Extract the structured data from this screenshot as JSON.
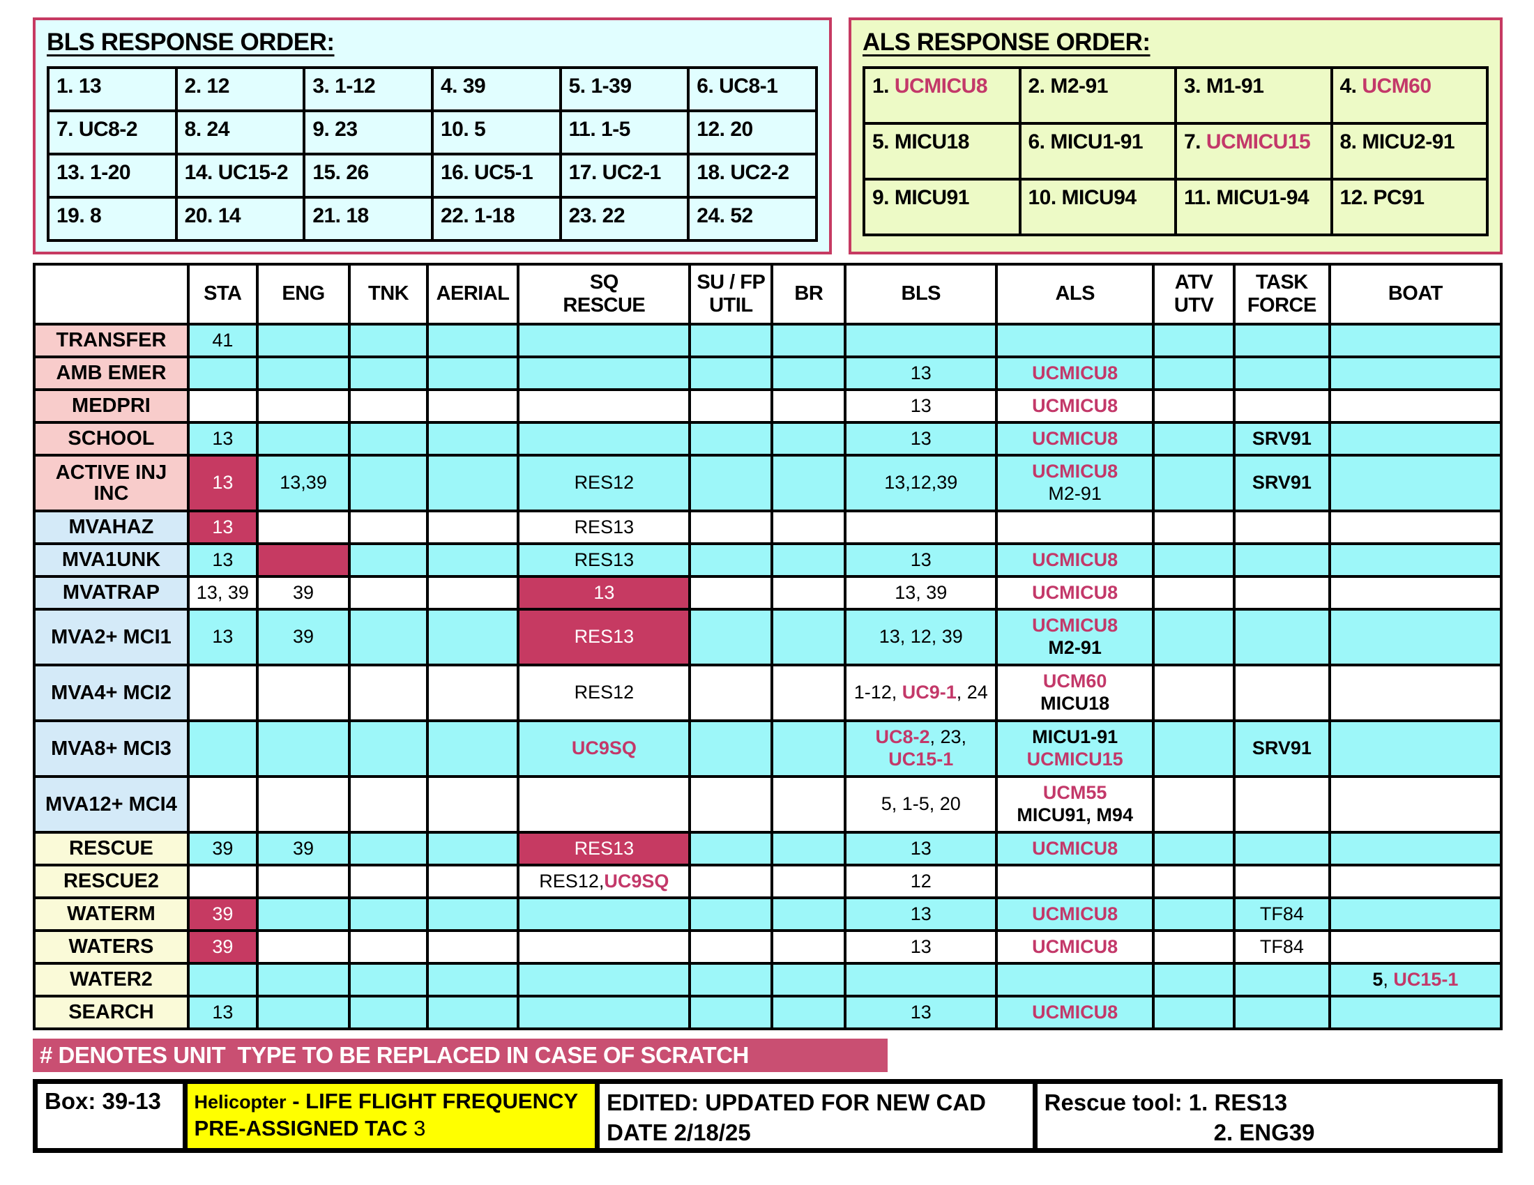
{
  "colors": {
    "crimson_cell": "#C63A62",
    "banner_bg": "#C94F72",
    "red_text": "#C33869",
    "cyan_cell": "#9DF7F9",
    "pink_label": "#F8CCCB",
    "blue_label": "#D4EAF8",
    "yellow_label": "#FAFAD8",
    "bls_panel_bg": "#E1FEFF",
    "als_panel_bg": "#EDFAC6",
    "helicopter_note_bg": "#FFFF00"
  },
  "bls_box": {
    "title": "BLS RESPONSE ORDER:",
    "rows": [
      [
        "1. 13",
        "2. 12",
        "3. 1-12",
        "4. 39",
        "5. 1-39",
        "6. UC8-1"
      ],
      [
        "7. UC8-2",
        "8. 24",
        "9. 23",
        "10. 5",
        "11. 1-5",
        "12. 20"
      ],
      [
        "13. 1-20",
        "14. UC15-2",
        "15. 26",
        "16. UC5-1",
        "17. UC2-1",
        "18. UC2-2"
      ],
      [
        "19. 8",
        "20. 14",
        "21. 18",
        "22. 1-18",
        "23. 22",
        "24. 52"
      ]
    ]
  },
  "als_box": {
    "title": "ALS RESPONSE ORDER:",
    "rows": [
      [
        {
          "pre": "1. ",
          "unit": "UCMICU8",
          "red": true
        },
        {
          "pre": "2. ",
          "unit": "M2-91",
          "red": false
        },
        {
          "pre": "3. ",
          "unit": "M1-91",
          "red": false
        },
        {
          "pre": "4. ",
          "unit": "UCM60",
          "red": true
        }
      ],
      [
        {
          "pre": "5. ",
          "unit": "MICU18",
          "red": false
        },
        {
          "pre": "6. ",
          "unit": "MICU1-91",
          "red": false
        },
        {
          "pre": "7. ",
          "unit": "UCMICU15",
          "red": true
        },
        {
          "pre": "8. ",
          "unit": "MICU2-91",
          "red": false
        }
      ],
      [
        {
          "pre": "9. ",
          "unit": "MICU91",
          "red": false
        },
        {
          "pre": "10. ",
          "unit": "MICU94",
          "red": false
        },
        {
          "pre": "11. ",
          "unit": "MICU1-94",
          "red": false
        },
        {
          "pre": "12. ",
          "unit": "PC91",
          "red": false
        }
      ]
    ]
  },
  "main_table": {
    "columns": [
      {
        "key": "label",
        "label": [
          ""
        ],
        "w": 10.5
      },
      {
        "key": "sta",
        "label": [
          "STA"
        ],
        "w": 4.7
      },
      {
        "key": "eng",
        "label": [
          "ENG"
        ],
        "w": 6.3
      },
      {
        "key": "tnk",
        "label": [
          "TNK"
        ],
        "w": 5.3
      },
      {
        "key": "aerial",
        "label": [
          "AERIAL"
        ],
        "w": 6.2
      },
      {
        "key": "sq",
        "label": [
          "SQ",
          "RESCUE"
        ],
        "w": 11.7
      },
      {
        "key": "sufp",
        "label": [
          "SU / FP",
          "UTIL"
        ],
        "w": 5.6
      },
      {
        "key": "br",
        "label": [
          "BR"
        ],
        "w": 5.0
      },
      {
        "key": "bls",
        "label": [
          "BLS"
        ],
        "w": 10.3
      },
      {
        "key": "als",
        "label": [
          "ALS"
        ],
        "w": 10.7
      },
      {
        "key": "atv",
        "label": [
          "ATV",
          "UTV"
        ],
        "w": 5.5
      },
      {
        "key": "task",
        "label": [
          "TASK",
          "FORCE"
        ],
        "w": 6.5
      },
      {
        "key": "boat",
        "label": [
          "BOAT"
        ],
        "w": 11.7
      }
    ],
    "rows": [
      {
        "label": "TRANSFER",
        "lbg": "pink",
        "bg": "cyan",
        "h": 47,
        "cells": {
          "sta": {
            "lines": [
              [
                [
                  "41",
                  "k"
                ]
              ]
            ]
          }
        }
      },
      {
        "label": "AMB EMER",
        "lbg": "pink",
        "bg": "cyan",
        "h": 47,
        "cells": {
          "bls": {
            "lines": [
              [
                [
                  "13",
                  "k"
                ]
              ]
            ]
          },
          "als": {
            "lines": [
              [
                [
                  "UCMICU8",
                  "r"
                ]
              ]
            ]
          }
        }
      },
      {
        "label": "MEDPRI",
        "lbg": "pink",
        "bg": "white",
        "h": 47,
        "cells": {
          "bls": {
            "lines": [
              [
                [
                  "13",
                  "k"
                ]
              ]
            ]
          },
          "als": {
            "lines": [
              [
                [
                  "UCMICU8",
                  "r"
                ]
              ]
            ]
          }
        }
      },
      {
        "label": "SCHOOL",
        "lbg": "pink",
        "bg": "cyan",
        "h": 47,
        "cells": {
          "sta": {
            "lines": [
              [
                [
                  "13",
                  "k"
                ]
              ]
            ]
          },
          "bls": {
            "lines": [
              [
                [
                  "13",
                  "k"
                ]
              ]
            ]
          },
          "als": {
            "lines": [
              [
                [
                  "UCMICU8",
                  "r"
                ]
              ]
            ]
          },
          "task": {
            "lines": [
              [
                [
                  "SRV91",
                  "kb"
                ]
              ]
            ]
          }
        }
      },
      {
        "label": "ACTIVE INJ INC",
        "lbg": "pink",
        "bg": "cyan",
        "h": 80,
        "cells": {
          "sta": {
            "bg": "crimson",
            "lines": [
              [
                [
                  "13",
                  "w"
                ]
              ]
            ]
          },
          "eng": {
            "lines": [
              [
                [
                  "13,39",
                  "k"
                ]
              ]
            ]
          },
          "sq": {
            "lines": [
              [
                [
                  "RES12",
                  "k"
                ]
              ]
            ]
          },
          "bls": {
            "lines": [
              [
                [
                  "13,12,39",
                  "k"
                ]
              ]
            ]
          },
          "als": {
            "lines": [
              [
                [
                  "UCMICU8",
                  "r"
                ]
              ],
              [
                [
                  "M2-91",
                  "k"
                ]
              ]
            ]
          },
          "task": {
            "lines": [
              [
                [
                  "SRV91",
                  "kb"
                ]
              ]
            ]
          }
        }
      },
      {
        "label": "MVAHAZ",
        "lbg": "blue",
        "bg": "white",
        "h": 47,
        "cells": {
          "sta": {
            "bg": "crimson",
            "lines": [
              [
                [
                  "13",
                  "w"
                ]
              ]
            ]
          },
          "sq": {
            "lines": [
              [
                [
                  "RES13",
                  "k"
                ]
              ]
            ]
          }
        }
      },
      {
        "label": "MVA1UNK",
        "lbg": "blue",
        "bg": "cyan",
        "h": 47,
        "cells": {
          "sta": {
            "lines": [
              [
                [
                  "13",
                  "k"
                ]
              ]
            ]
          },
          "eng": {
            "bg": "crimson",
            "lines": []
          },
          "sq": {
            "lines": [
              [
                [
                  "RES13",
                  "k"
                ]
              ]
            ]
          },
          "bls": {
            "lines": [
              [
                [
                  "13",
                  "k"
                ]
              ]
            ]
          },
          "als": {
            "lines": [
              [
                [
                  "UCMICU8",
                  "r"
                ]
              ]
            ]
          }
        }
      },
      {
        "label": "MVATRAP",
        "lbg": "blue",
        "bg": "white",
        "h": 47,
        "cells": {
          "sta": {
            "lines": [
              [
                [
                  "13, 39",
                  "k"
                ]
              ]
            ]
          },
          "eng": {
            "lines": [
              [
                [
                  "39",
                  "k"
                ]
              ]
            ]
          },
          "sq": {
            "bg": "crimson",
            "lines": [
              [
                [
                  "13",
                  "w"
                ]
              ]
            ]
          },
          "bls": {
            "lines": [
              [
                [
                  "13, 39",
                  "k"
                ]
              ]
            ]
          },
          "als": {
            "lines": [
              [
                [
                  "UCMICU8",
                  "r"
                ]
              ]
            ]
          }
        }
      },
      {
        "label": "MVA2+ MCI1",
        "lbg": "blue",
        "bg": "cyan",
        "h": 80,
        "cells": {
          "sta": {
            "lines": [
              [
                [
                  "13",
                  "k"
                ]
              ]
            ]
          },
          "eng": {
            "lines": [
              [
                [
                  "39",
                  "k"
                ]
              ]
            ]
          },
          "sq": {
            "bg": "crimson",
            "lines": [
              [
                [
                  "RES13",
                  "w"
                ]
              ]
            ]
          },
          "bls": {
            "lines": [
              [
                [
                  "13, 12, 39",
                  "k"
                ]
              ]
            ]
          },
          "als": {
            "lines": [
              [
                [
                  "UCMICU8",
                  "r"
                ]
              ],
              [
                [
                  "M2-91",
                  "kb"
                ]
              ]
            ]
          }
        }
      },
      {
        "label": "MVA4+ MCI2",
        "lbg": "blue",
        "bg": "white",
        "h": 80,
        "cells": {
          "sq": {
            "lines": [
              [
                [
                  "RES12",
                  "k"
                ]
              ]
            ]
          },
          "bls": {
            "lines": [
              [
                [
                  "1-12, ",
                  "k"
                ],
                [
                  "UC9-1",
                  "r"
                ],
                [
                  ", 24",
                  "k"
                ]
              ]
            ]
          },
          "als": {
            "lines": [
              [
                [
                  "UCM60",
                  "r"
                ]
              ],
              [
                [
                  "MICU18",
                  "kb"
                ]
              ]
            ]
          }
        }
      },
      {
        "label": "MVA8+ MCI3",
        "lbg": "blue",
        "bg": "cyan",
        "h": 80,
        "cells": {
          "sq": {
            "lines": [
              [
                [
                  "UC9SQ",
                  "r"
                ]
              ]
            ]
          },
          "bls": {
            "lines": [
              [
                [
                  "UC8-2",
                  "r"
                ],
                [
                  ", 23,",
                  "k"
                ]
              ],
              [
                [
                  "UC15-1",
                  "r"
                ]
              ]
            ]
          },
          "als": {
            "lines": [
              [
                [
                  "MICU1-91",
                  "kb"
                ]
              ],
              [
                [
                  "UCMICU15",
                  "r"
                ]
              ]
            ]
          },
          "task": {
            "lines": [
              [
                [
                  "SRV91",
                  "kb"
                ]
              ]
            ]
          }
        }
      },
      {
        "label": "MVA12+ MCI4",
        "lbg": "blue",
        "bg": "white",
        "h": 80,
        "cells": {
          "bls": {
            "lines": [
              [
                [
                  "5, 1-5, 20",
                  "k"
                ]
              ]
            ]
          },
          "als": {
            "lines": [
              [
                [
                  "UCM55",
                  "r"
                ]
              ],
              [
                [
                  "MICU91, M94",
                  "kb"
                ]
              ]
            ]
          }
        }
      },
      {
        "label": "RESCUE",
        "lbg": "yellow",
        "bg": "cyan",
        "h": 47,
        "cells": {
          "sta": {
            "lines": [
              [
                [
                  "39",
                  "k"
                ]
              ]
            ]
          },
          "eng": {
            "lines": [
              [
                [
                  "39",
                  "k"
                ]
              ]
            ]
          },
          "sq": {
            "bg": "crimson",
            "lines": [
              [
                [
                  "RES13",
                  "w"
                ]
              ]
            ]
          },
          "bls": {
            "lines": [
              [
                [
                  "13",
                  "k"
                ]
              ]
            ]
          },
          "als": {
            "lines": [
              [
                [
                  "UCMICU8",
                  "r"
                ]
              ]
            ]
          }
        }
      },
      {
        "label": "RESCUE2",
        "lbg": "yellow",
        "bg": "white",
        "h": 47,
        "cells": {
          "sq": {
            "lines": [
              [
                [
                  "RES12,",
                  "k"
                ],
                [
                  "UC9SQ",
                  "r"
                ]
              ]
            ]
          },
          "bls": {
            "lines": [
              [
                [
                  "12",
                  "k"
                ]
              ]
            ]
          }
        }
      },
      {
        "label": "WATERM",
        "lbg": "yellow",
        "bg": "cyan",
        "h": 47,
        "cells": {
          "sta": {
            "bg": "crimson",
            "lines": [
              [
                [
                  "39",
                  "w"
                ]
              ]
            ]
          },
          "bls": {
            "lines": [
              [
                [
                  "13",
                  "k"
                ]
              ]
            ]
          },
          "als": {
            "lines": [
              [
                [
                  "UCMICU8",
                  "r"
                ]
              ]
            ]
          },
          "task": {
            "lines": [
              [
                [
                  "TF84",
                  "k"
                ]
              ]
            ]
          }
        }
      },
      {
        "label": "WATERS",
        "lbg": "yellow",
        "bg": "white",
        "h": 47,
        "cells": {
          "sta": {
            "bg": "crimson",
            "lines": [
              [
                [
                  "39",
                  "w"
                ]
              ]
            ]
          },
          "bls": {
            "lines": [
              [
                [
                  "13",
                  "k"
                ]
              ]
            ]
          },
          "als": {
            "lines": [
              [
                [
                  "UCMICU8",
                  "r"
                ]
              ]
            ]
          },
          "task": {
            "lines": [
              [
                [
                  "TF84",
                  "k"
                ]
              ]
            ]
          }
        }
      },
      {
        "label": "WATER2",
        "lbg": "yellow",
        "bg": "cyan",
        "h": 47,
        "cells": {
          "boat": {
            "lines": [
              [
                [
                  "5",
                  "kb"
                ],
                [
                  ", ",
                  "k"
                ],
                [
                  "UC15-1",
                  "r"
                ]
              ]
            ]
          }
        }
      },
      {
        "label": "SEARCH",
        "lbg": "yellow",
        "bg": "cyan",
        "h": 47,
        "cells": {
          "sta": {
            "lines": [
              [
                [
                  "13",
                  "k"
                ]
              ]
            ]
          },
          "bls": {
            "lines": [
              [
                [
                  "13",
                  "k"
                ]
              ]
            ]
          },
          "als": {
            "lines": [
              [
                [
                  "UCMICU8",
                  "r"
                ]
              ]
            ]
          }
        }
      }
    ]
  },
  "banner": {
    "text": "# DENOTES UNIT  TYPE TO BE REPLACED IN CASE OF SCRATCH"
  },
  "footer": {
    "box_label": "Box: 39-13",
    "heli_line1_a": "Helicopter",
    "heli_line1_b": " - LIFE FLIGHT FREQUENCY",
    "heli_line2_a": "PRE-ASSIGNED TAC",
    "heli_line2_b": " 3",
    "edited_line1": "EDITED: UPDATED FOR NEW CAD",
    "edited_line2": "DATE 2/18/25",
    "rescue_line1": "Rescue tool: 1.  RES13",
    "rescue_line2": "2.  ENG39"
  }
}
